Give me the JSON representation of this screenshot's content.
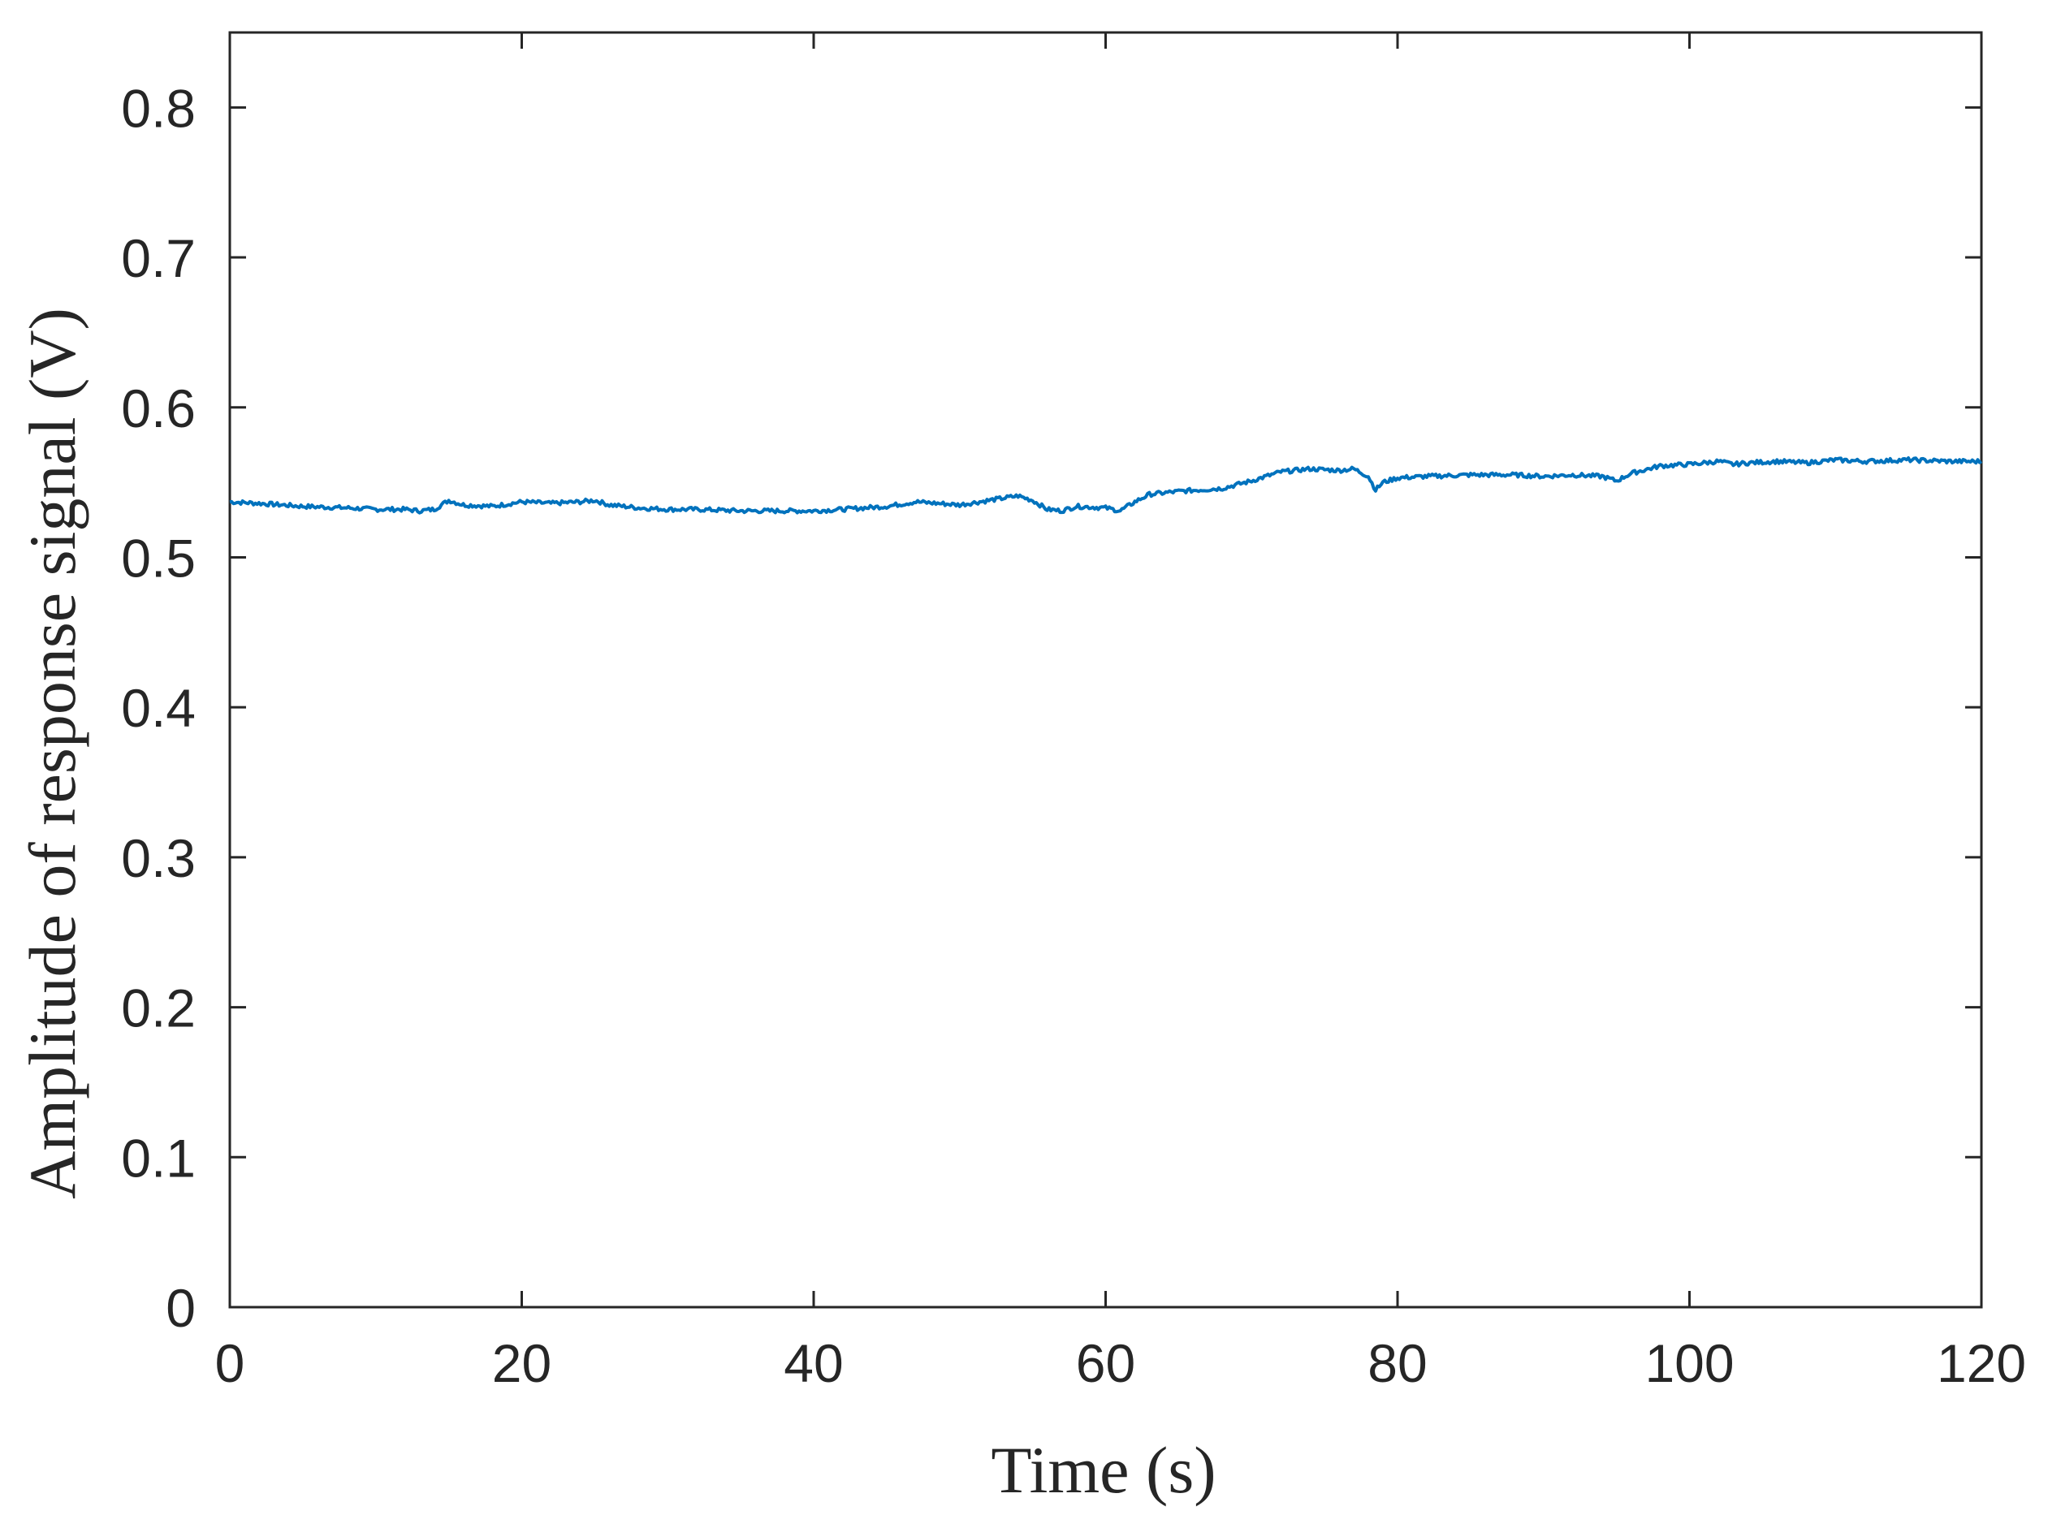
{
  "chart_data": {
    "type": "line",
    "title": "",
    "xlabel": "Time (s)",
    "ylabel": "Amplitude of response signal (V)",
    "xlim": [
      0,
      120
    ],
    "ylim": [
      0,
      0.85
    ],
    "xticks": [
      0,
      20,
      40,
      60,
      80,
      100,
      120
    ],
    "xtick_labels": [
      "0",
      "20",
      "40",
      "60",
      "80",
      "100",
      "120"
    ],
    "yticks": [
      0,
      0.1,
      0.2,
      0.3,
      0.4,
      0.5,
      0.6,
      0.7,
      0.8
    ],
    "ytick_labels": [
      "0",
      "0.1",
      "0.2",
      "0.3",
      "0.4",
      "0.5",
      "0.6",
      "0.7",
      "0.8"
    ],
    "grid": false,
    "legend": "none",
    "line_color": "#0072BD",
    "series": [
      {
        "x": [
          0,
          2,
          5,
          8,
          10,
          12,
          13,
          14,
          15,
          16,
          18,
          20,
          22,
          24,
          25,
          26,
          28,
          30,
          32,
          35,
          38,
          40,
          42,
          45,
          47,
          50,
          52,
          54,
          55,
          56,
          57,
          58,
          60,
          61,
          62,
          63,
          65,
          68,
          70,
          72,
          74,
          76,
          77,
          78,
          78.5,
          79,
          80,
          82,
          85,
          88,
          90,
          92,
          94,
          95,
          96,
          98,
          100,
          102,
          103,
          104,
          106,
          108,
          110,
          112,
          115,
          118,
          120
        ],
        "y": [
          0.537,
          0.536,
          0.534,
          0.533,
          0.532,
          0.532,
          0.531,
          0.532,
          0.538,
          0.535,
          0.534,
          0.537,
          0.536,
          0.537,
          0.538,
          0.535,
          0.533,
          0.532,
          0.532,
          0.531,
          0.531,
          0.531,
          0.532,
          0.534,
          0.537,
          0.535,
          0.538,
          0.541,
          0.538,
          0.532,
          0.531,
          0.534,
          0.533,
          0.531,
          0.537,
          0.542,
          0.544,
          0.546,
          0.551,
          0.557,
          0.559,
          0.558,
          0.559,
          0.554,
          0.545,
          0.55,
          0.553,
          0.554,
          0.555,
          0.555,
          0.554,
          0.555,
          0.554,
          0.551,
          0.556,
          0.561,
          0.562,
          0.564,
          0.562,
          0.563,
          0.564,
          0.563,
          0.565,
          0.564,
          0.565,
          0.564,
          0.564
        ]
      }
    ]
  }
}
